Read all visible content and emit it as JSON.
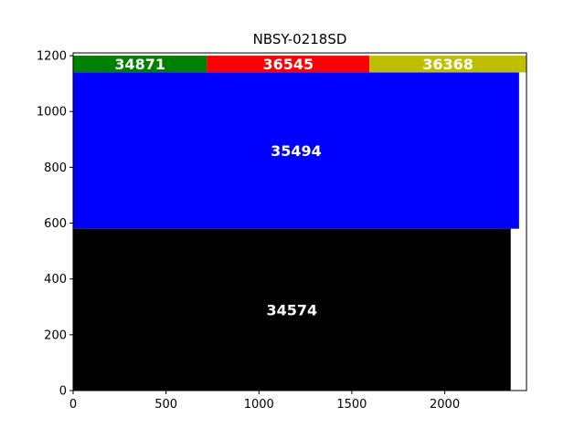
{
  "chart_data": {
    "type": "treemap",
    "title": "NBSY-0218SD",
    "xlim": [
      0,
      2440
    ],
    "ylim": [
      0,
      1210
    ],
    "x_ticks": [
      0,
      500,
      1000,
      1500,
      2000
    ],
    "y_ticks": [
      0,
      200,
      400,
      600,
      800,
      1000,
      1200
    ],
    "tiles": [
      {
        "label": "34574",
        "value": 34574,
        "color": "#000000",
        "x": [
          0,
          2355
        ],
        "y": [
          0,
          580
        ]
      },
      {
        "label": "35494",
        "value": 35494,
        "color": "#0000ff",
        "x": [
          0,
          2400
        ],
        "y": [
          580,
          1140
        ]
      },
      {
        "label": "34871",
        "value": 34871,
        "color": "#008000",
        "x": [
          0,
          720
        ],
        "y": [
          1140,
          1200
        ]
      },
      {
        "label": "36545",
        "value": 36545,
        "color": "#ff0000",
        "x": [
          720,
          1595
        ],
        "y": [
          1140,
          1200
        ]
      },
      {
        "label": "36368",
        "value": 36368,
        "color": "#bfbf00",
        "x": [
          1595,
          2440
        ],
        "y": [
          1140,
          1200
        ]
      }
    ]
  }
}
